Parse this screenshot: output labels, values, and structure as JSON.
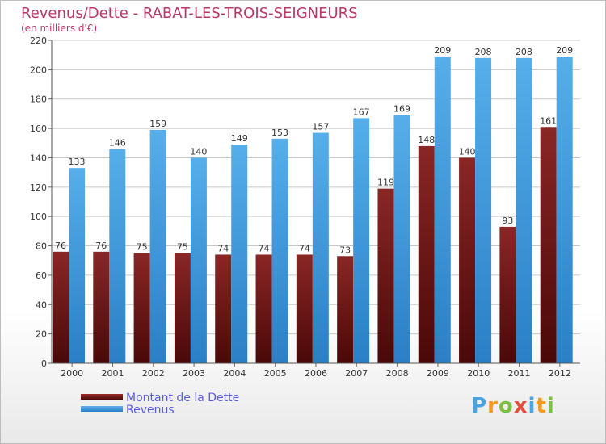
{
  "title": "Revenus/Dette - RABAT-LES-TROIS-SEIGNEURS",
  "subtitle": "(en milliers d'€)",
  "colors": {
    "debt": "#7a1a1a",
    "revenue": "#3a9ae0",
    "title": "#b8386a",
    "legend_text": "#5a5ae0",
    "grid": "#c8c8c8"
  },
  "legend": {
    "debt_label": "Montant de la Dette",
    "revenue_label": "Revenus"
  },
  "logo_text": "Proxiti",
  "chart_data": {
    "type": "bar",
    "title": "Revenus/Dette - RABAT-LES-TROIS-SEIGNEURS",
    "subtitle": "(en milliers d'€)",
    "categories": [
      "2000",
      "2001",
      "2002",
      "2003",
      "2004",
      "2005",
      "2006",
      "2007",
      "2008",
      "2009",
      "2010",
      "2011",
      "2012"
    ],
    "series": [
      {
        "name": "Montant de la Dette",
        "values": [
          76,
          76,
          75,
          75,
          74,
          74,
          74,
          73,
          119,
          148,
          140,
          93,
          161
        ]
      },
      {
        "name": "Revenus",
        "values": [
          133,
          146,
          159,
          140,
          149,
          153,
          157,
          167,
          169,
          209,
          208,
          208,
          209
        ]
      }
    ],
    "ylim": [
      0,
      220
    ],
    "yticks": [
      0,
      20,
      40,
      60,
      80,
      100,
      120,
      140,
      160,
      180,
      200,
      220
    ],
    "grid": true,
    "legend_position": "bottom-left"
  }
}
